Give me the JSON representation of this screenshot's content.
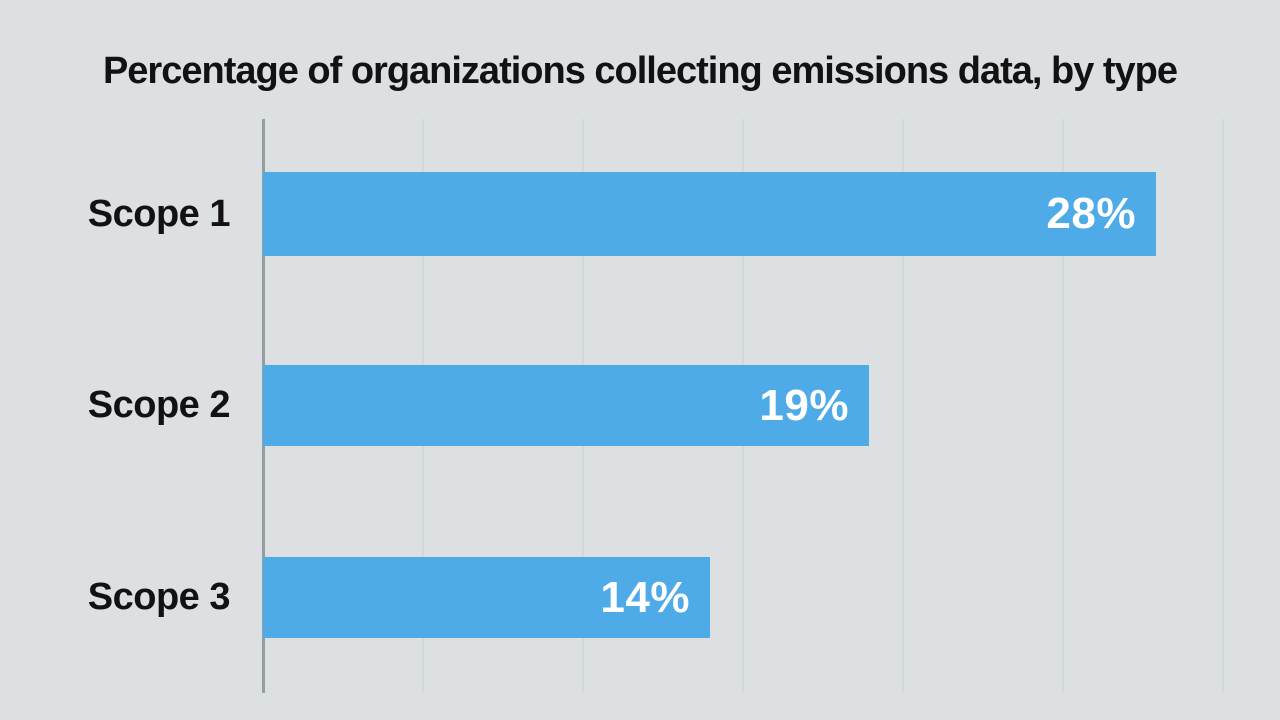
{
  "chart_data": {
    "type": "bar",
    "orientation": "horizontal",
    "title": "Percentage of organizations collecting emissions data, by type",
    "categories": [
      "Scope 1",
      "Scope 2",
      "Scope 3"
    ],
    "values": [
      28,
      19,
      14
    ],
    "value_labels": [
      "28%",
      "19%",
      "14%"
    ],
    "xlabel": "",
    "ylabel": "",
    "xlim": [
      0,
      32
    ],
    "gridline_interval_percent": 5,
    "grid": true,
    "legend_position": "none",
    "axis_tick_labels_visible": false,
    "colors": {
      "background": "#dce0e3",
      "bar": "#4eabe8",
      "axis_line": "#989d9e",
      "gridline": "#d2d7da",
      "title_text": "#121212",
      "category_text": "#121212",
      "value_text": "#ffffff"
    }
  }
}
